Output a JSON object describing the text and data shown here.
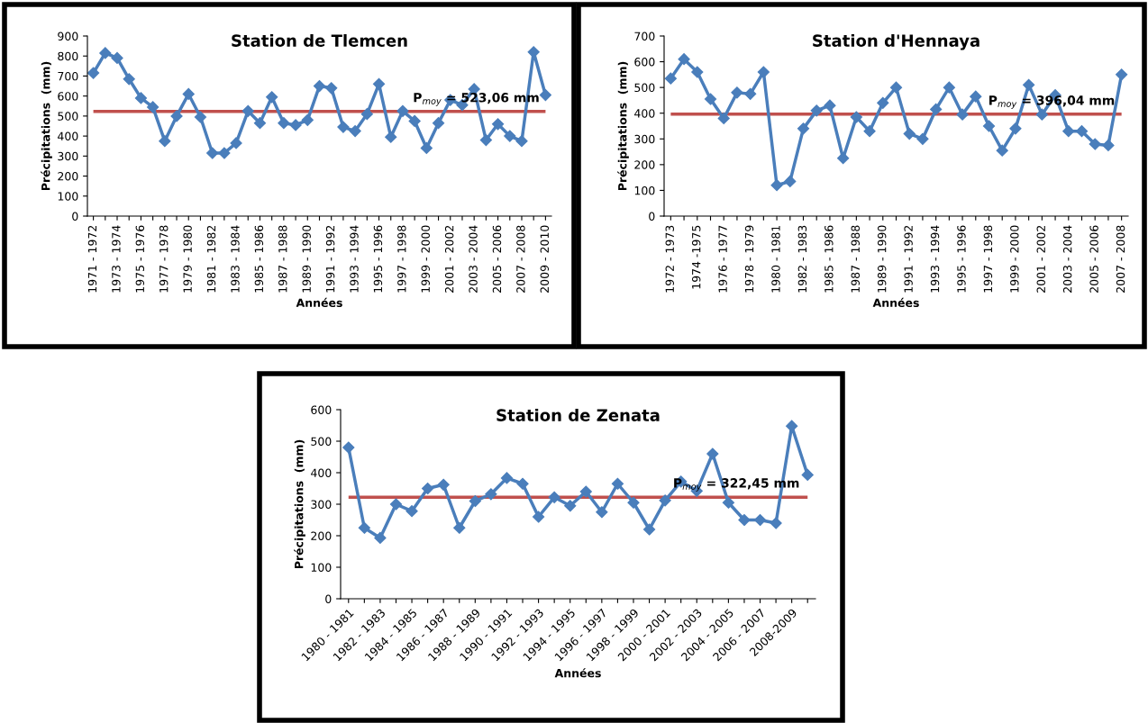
{
  "chart_data": [
    {
      "type": "line",
      "title": "Station de Tlemcen",
      "xlabel": "Années",
      "ylabel": "Précipitations  (mm)",
      "categories": [
        "1971 - 1972",
        null,
        "1973 - 1974",
        null,
        "1975 - 1976",
        null,
        "1977 - 1978",
        null,
        "1979 - 1980",
        null,
        "1981 - 1982",
        null,
        "1983 - 1984",
        null,
        "1985 - 1986",
        null,
        "1987 - 1988",
        null,
        "1989 - 1990",
        null,
        "1991 - 1992",
        null,
        "1993 - 1994",
        null,
        "1995 - 1996",
        null,
        "1997 - 1998",
        null,
        "1999 - 2000",
        null,
        "2001 - 2002",
        null,
        "2003 - 2004",
        null,
        "2005 - 2006",
        null,
        "2007 - 2008",
        null,
        "2009 - 2010"
      ],
      "series": [
        {
          "color": "#4a7ebb",
          "values": [
            715,
            815,
            790,
            685,
            590,
            545,
            375,
            500,
            610,
            495,
            315,
            315,
            365,
            525,
            465,
            595,
            465,
            455,
            480,
            650,
            640,
            445,
            425,
            510,
            660,
            395,
            525,
            475,
            340,
            465,
            580,
            555,
            635,
            380,
            460,
            400,
            375,
            820,
            605
          ]
        }
      ],
      "ylim": [
        0,
        900
      ],
      "yticks": [
        0,
        100,
        200,
        300,
        400,
        500,
        600,
        700,
        800,
        900
      ],
      "marker": "diamond",
      "grid": false,
      "legend": false,
      "ref_lines": [
        {
          "axis": "y",
          "value": 523.06,
          "label": "P$_{moy}$ = 523,06 mm",
          "color": "#c0504d"
        }
      ]
    },
    {
      "type": "line",
      "title": "Station d'Hennaya",
      "xlabel": "Années",
      "ylabel": "Précipitations  (mm)",
      "categories": [
        "1972 - 1973",
        null,
        "1974 -1975",
        null,
        "1976 - 1977",
        null,
        "1978 - 1979",
        null,
        "1980 - 1981",
        null,
        "1982 - 1983",
        null,
        "1985 - 1986",
        null,
        "1987 - 1988",
        null,
        "1989 - 1990",
        null,
        "1991 - 1992",
        null,
        "1993 - 1994",
        null,
        "1995 - 1996",
        null,
        "1997 - 1998",
        null,
        "1999 - 2000",
        null,
        "2001 - 2002",
        null,
        "2003 - 2004",
        null,
        "2005 - 2006",
        null,
        "2007 - 2008"
      ],
      "series": [
        {
          "color": "#4a7ebb",
          "values": [
            535,
            610,
            560,
            455,
            380,
            480,
            475,
            560,
            120,
            135,
            340,
            410,
            430,
            225,
            385,
            330,
            440,
            500,
            320,
            300,
            415,
            500,
            395,
            465,
            350,
            255,
            340,
            510,
            395,
            470,
            330,
            330,
            280,
            275,
            550
          ]
        }
      ],
      "ylim": [
        0,
        700
      ],
      "yticks": [
        0,
        100,
        200,
        300,
        400,
        500,
        600,
        700
      ],
      "marker": "diamond",
      "grid": false,
      "legend": false,
      "ref_lines": [
        {
          "axis": "y",
          "value": 396.04,
          "label": "P$_{moy}$ = 396,04 mm",
          "color": "#c0504d"
        }
      ]
    },
    {
      "type": "line",
      "title": "Station de Zenata",
      "xlabel": "Années",
      "ylabel": "Précipitations  (mm)",
      "categories": [
        "1980 - 1981",
        null,
        "1982 - 1983",
        null,
        "1984 - 1985",
        null,
        "1986 - 1987",
        null,
        "1988 - 1989",
        null,
        "1990 - 1991",
        null,
        "1992 - 1993",
        null,
        "1994 - 1995",
        null,
        "1996 - 1997",
        null,
        "1998 - 1999",
        null,
        "2000 - 2001",
        null,
        "2002 - 2003",
        null,
        "2004 - 2005",
        null,
        "2006 - 2007",
        null,
        "2008-2009",
        null
      ],
      "series": [
        {
          "color": "#4a7ebb",
          "values": [
            480,
            225,
            193,
            300,
            278,
            350,
            362,
            225,
            310,
            332,
            383,
            365,
            260,
            322,
            295,
            340,
            275,
            365,
            305,
            220,
            312,
            372,
            342,
            460,
            305,
            250,
            250,
            240,
            548,
            393
          ]
        }
      ],
      "ylim": [
        0,
        600
      ],
      "yticks": [
        0,
        100,
        200,
        300,
        400,
        500,
        600
      ],
      "marker": "diamond",
      "grid": false,
      "legend": false,
      "ref_lines": [
        {
          "axis": "y",
          "value": 322.45,
          "label": "P$_{moy}$ = 322,45 mm",
          "color": "#c0504d"
        }
      ]
    }
  ]
}
